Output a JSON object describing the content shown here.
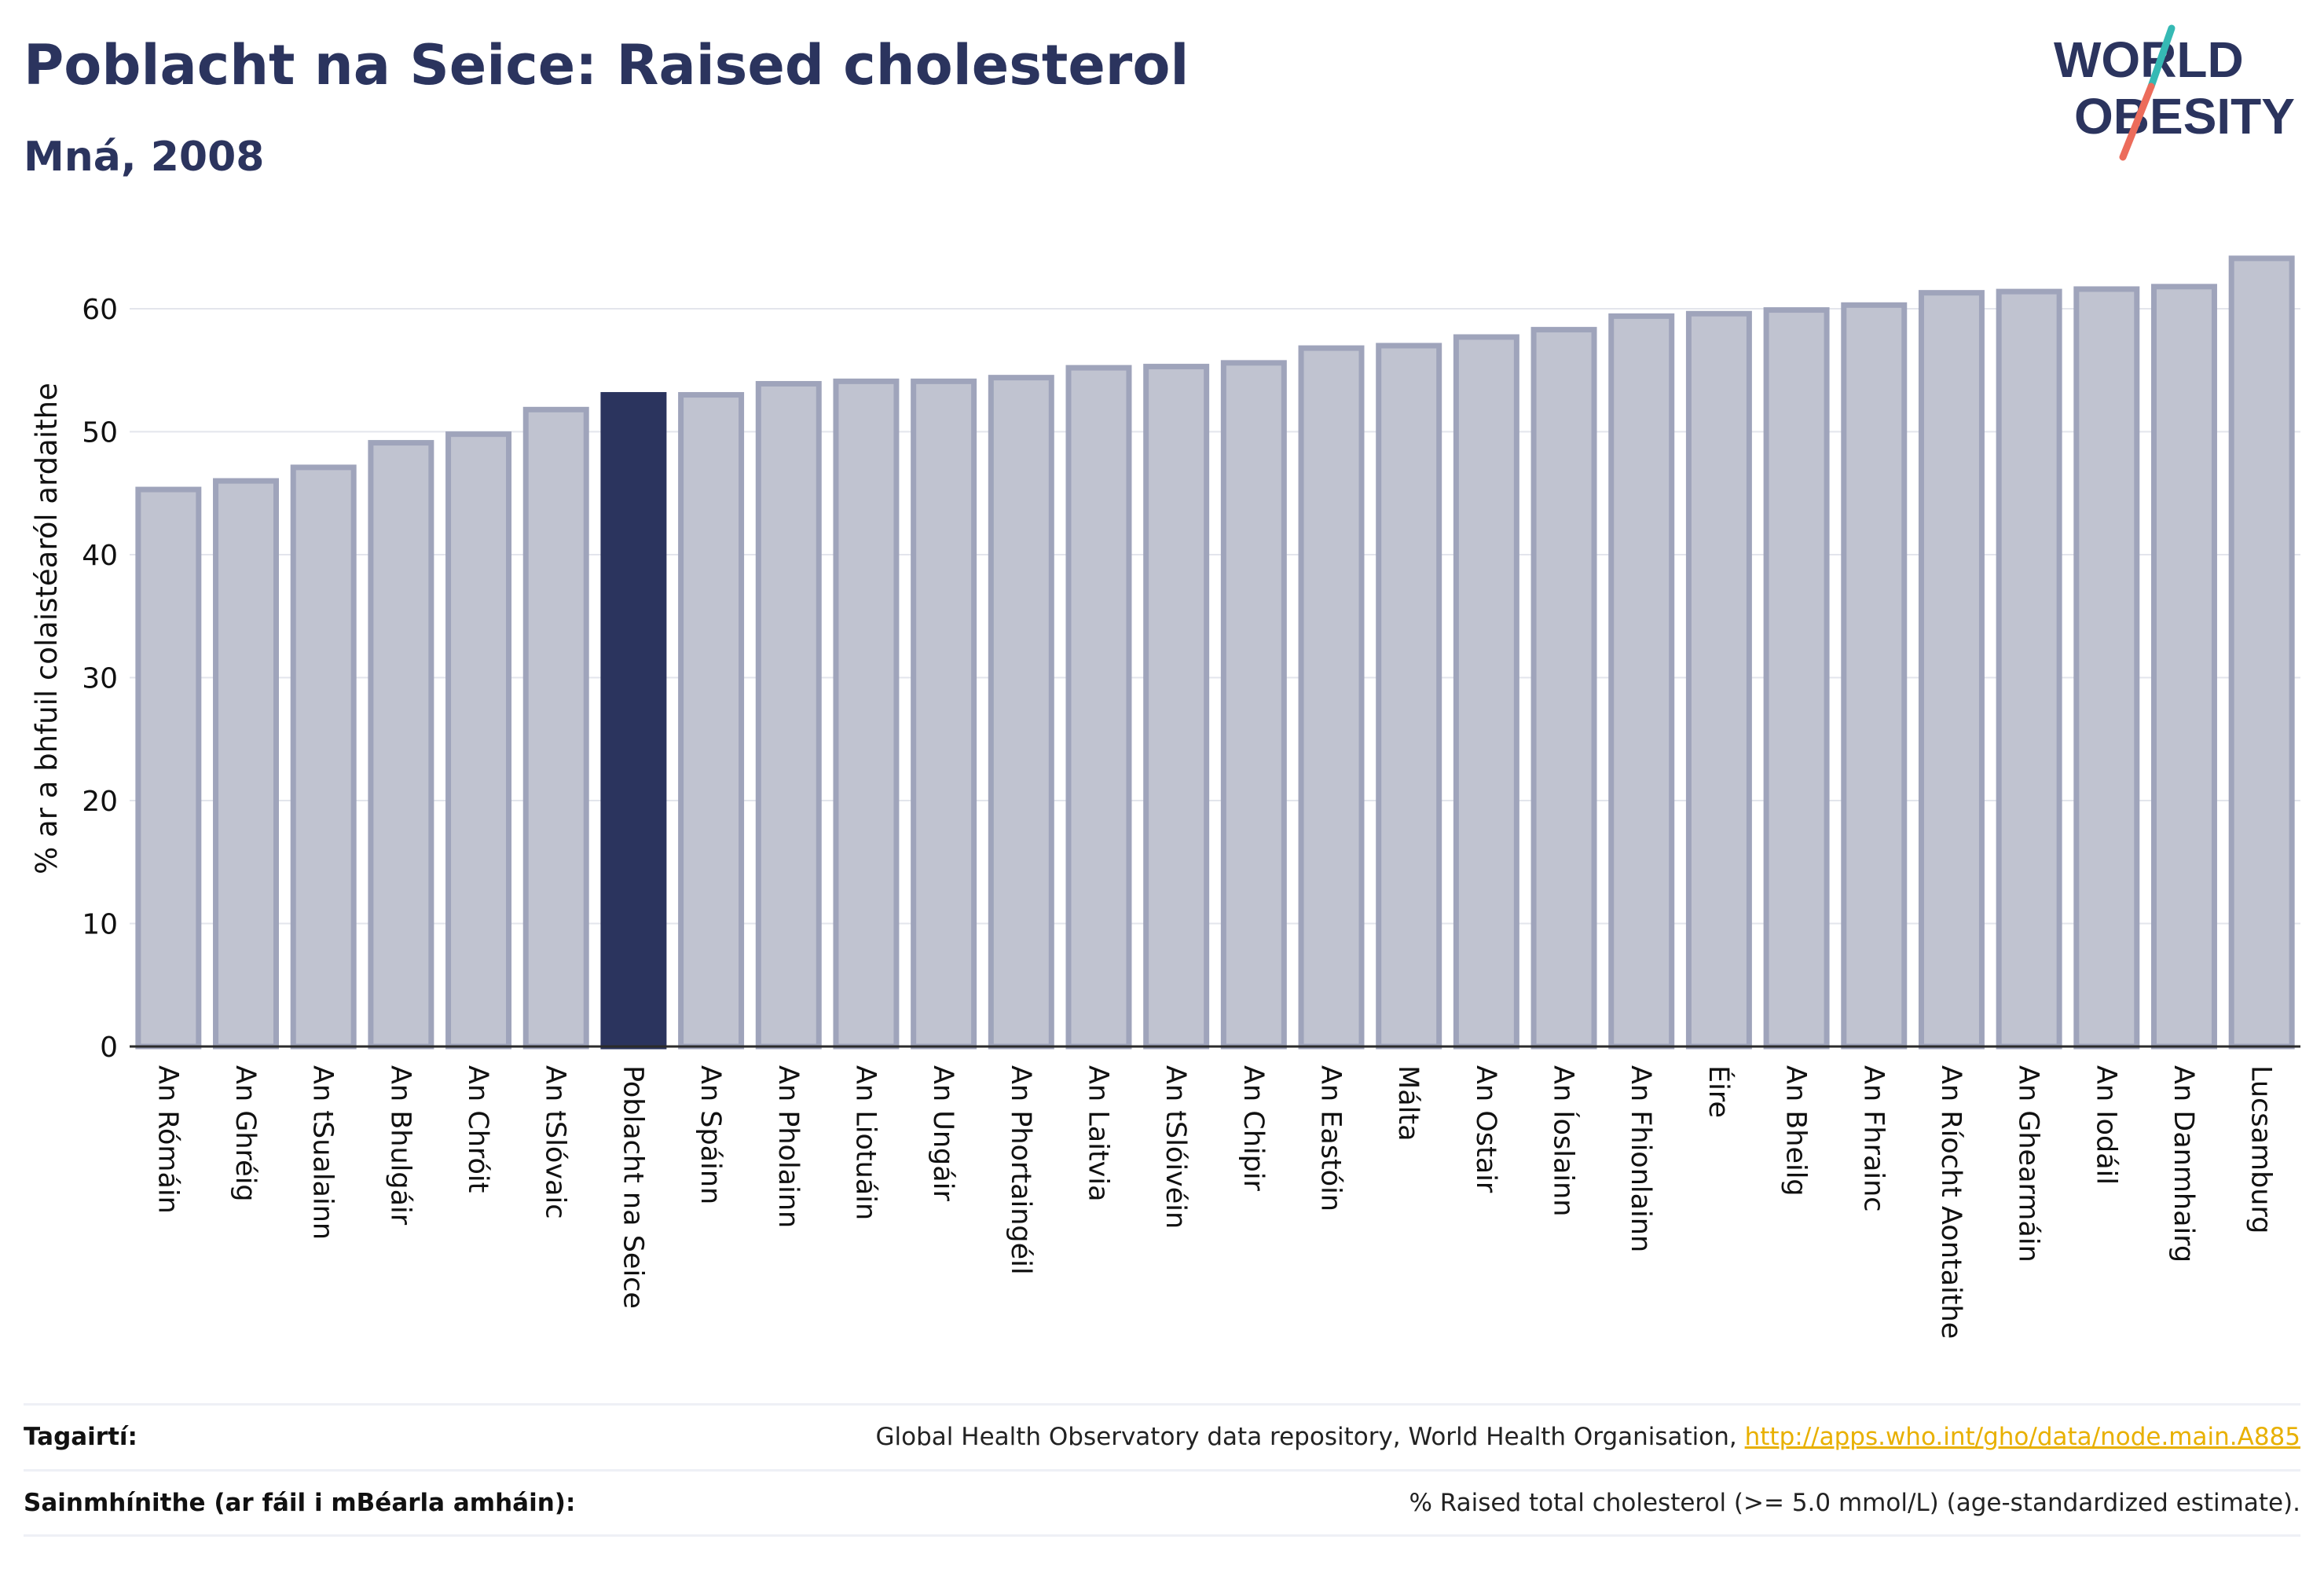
{
  "header": {
    "title": "Poblacht na Seice: Raised cholesterol",
    "subtitle": "Mná, 2008"
  },
  "logo": {
    "line1": "WORLD",
    "line2": "OBESITY",
    "accent_teal": "#35b9b4",
    "accent_red": "#ec6c5b"
  },
  "colors": {
    "navy": "#2b345e",
    "bar_fill": "#c0c3d0",
    "bar_stroke": "#9fa4bb",
    "highlight": "#2b345e"
  },
  "chart_data": {
    "type": "bar",
    "title": "",
    "xlabel": "",
    "ylabel": "% ar a bhfuil colaistéaról ardaithe",
    "ylim": [
      0,
      65
    ],
    "yticks": [
      0,
      10,
      20,
      30,
      40,
      50,
      60
    ],
    "grid": true,
    "highlight_category": "Poblacht na Seice",
    "categories": [
      "An Rómáin",
      "An Ghréig",
      "An tSualainn",
      "An Bhulgáir",
      "An Chróit",
      "An tSlóvaic",
      "Poblacht na Seice",
      "An Spáinn",
      "An Pholainn",
      "An Liotuáin",
      "An Ungáir",
      "An Phortaingéil",
      "An Laitvia",
      "An tSlóivéin",
      "An Chipir",
      "An Eastóin",
      "Málta",
      "An Ostair",
      "An Íoslainn",
      "An Fhionlainn",
      "Éire",
      "An Bheilg",
      "An Fhrainc",
      "An Ríocht Aontaithe",
      "An Ghearmáin",
      "An Iodáil",
      "An Danmhairg",
      "Lucsamburg"
    ],
    "values": [
      45.3,
      46.0,
      47.1,
      49.1,
      49.8,
      51.8,
      53.0,
      53.0,
      53.9,
      54.1,
      54.1,
      54.4,
      55.2,
      55.3,
      55.6,
      56.8,
      57.0,
      57.7,
      58.3,
      59.4,
      59.6,
      59.9,
      60.3,
      61.3,
      61.4,
      61.6,
      61.8,
      64.1
    ]
  },
  "references": {
    "sources_label": "Tagairtí:",
    "sources_text": "Global Health Observatory data repository, World Health Organisation,",
    "sources_link": "http://apps.who.int/gho/data/node.main.A885",
    "definitions_label": "Sainmhínithe (ar fáil i mBéarla amháin):",
    "definitions_text": "% Raised total cholesterol (>= 5.0 mmol/L) (age-standardized estimate)."
  }
}
